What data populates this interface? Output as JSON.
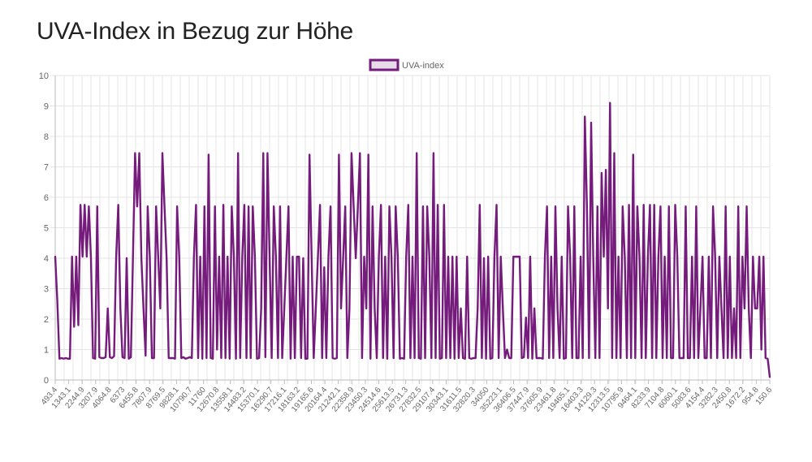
{
  "page_title": "UVA-Index in Bezug zur Höhe",
  "colors": {
    "line": "#741b7c",
    "legend_fill": "#e6dce8",
    "grid": "#e4e4e4",
    "axis": "#bbbbbb"
  },
  "chart_data": {
    "type": "line",
    "title": "UVA-Index in Bezug zur Höhe",
    "xlabel": "",
    "ylabel": "",
    "ylim": [
      0,
      10
    ],
    "yticks": [
      "0",
      "1",
      "2",
      "3",
      "4",
      "5",
      "6",
      "7",
      "8",
      "9",
      "10"
    ],
    "grid": true,
    "legend": {
      "position": "top",
      "entries": [
        "UVA-index"
      ]
    },
    "x_tick_labels": [
      "493.4",
      "1343.1",
      "2244.9",
      "3207.9",
      "4064.8",
      "6373",
      "6455.8",
      "7807.9",
      "8769.5",
      "9828.1",
      "10790.7",
      "11760",
      "12670.8",
      "13558.1",
      "14483.2",
      "15370.1",
      "16290.7",
      "17216.1",
      "18163.2",
      "19165.6",
      "20164.4",
      "21242.1",
      "22358.9",
      "23450.3",
      "24514.6",
      "25613.5",
      "26731.3",
      "27832.5",
      "29107.4",
      "30343.1",
      "31611.5",
      "32820.3",
      "34050",
      "35223.1",
      "36406.5",
      "37447.9",
      "37605.9",
      "23461.8",
      "19465.1",
      "16403.3",
      "14129.3",
      "12313.5",
      "10795.9",
      "9464.1",
      "8233.9",
      "7104.8",
      "6060.1",
      "5083.6",
      "4154.4",
      "3282.3",
      "2450.8",
      "1672.2",
      "954.8",
      "150.6"
    ],
    "series": [
      {
        "name": "UVA-index",
        "values": [
          4.05,
          2.6,
          0.7,
          0.72,
          0.7,
          0.72,
          0.7,
          0.7,
          4.05,
          1.75,
          4.05,
          1.8,
          5.75,
          4.05,
          5.75,
          4.05,
          5.7,
          4.0,
          0.72,
          0.7,
          5.7,
          0.75,
          0.72,
          0.72,
          0.75,
          2.35,
          0.75,
          0.72,
          0.78,
          4.05,
          5.75,
          2.35,
          0.75,
          0.72,
          4.0,
          0.7,
          0.75,
          4.05,
          7.45,
          5.7,
          7.45,
          4.0,
          2.35,
          0.8,
          5.7,
          4.05,
          0.72,
          0.72,
          5.7,
          4.05,
          2.35,
          7.45,
          5.7,
          4.0,
          0.72,
          0.72,
          0.72,
          0.7,
          5.7,
          4.05,
          0.72,
          0.75,
          0.7,
          0.72,
          0.75,
          0.72,
          4.05,
          5.75,
          0.72,
          4.05,
          0.7,
          5.7,
          0.72,
          7.4,
          0.72,
          0.7,
          5.7,
          1.0,
          4.05,
          0.72,
          5.75,
          0.72,
          4.05,
          0.7,
          5.7,
          4.05,
          0.7,
          7.45,
          0.72,
          4.05,
          5.75,
          0.72,
          5.7,
          0.72,
          5.7,
          4.05,
          0.7,
          0.72,
          2.35,
          7.45,
          0.75,
          7.45,
          4.05,
          0.72,
          5.7,
          4.05,
          0.72,
          5.7,
          0.72,
          2.35,
          4.05,
          5.7,
          0.7,
          4.05,
          0.72,
          4.05,
          4.05,
          0.72,
          4.0,
          0.7,
          0.7,
          7.4,
          4.05,
          0.72,
          2.35,
          4.05,
          5.75,
          0.72,
          3.7,
          0.72,
          4.05,
          5.7,
          0.72,
          0.7,
          0.72,
          7.4,
          2.35,
          4.0,
          5.7,
          0.72,
          2.35,
          7.45,
          5.7,
          4.0,
          5.7,
          7.45,
          0.72,
          4.05,
          2.35,
          7.4,
          0.7,
          5.7,
          2.35,
          0.72,
          4.05,
          5.75,
          0.72,
          4.05,
          0.7,
          5.7,
          4.05,
          0.72,
          5.7,
          4.05,
          0.7,
          0.72,
          0.7,
          4.05,
          5.75,
          0.72,
          4.05,
          0.72,
          7.45,
          0.72,
          0.7,
          5.7,
          0.72,
          5.7,
          4.05,
          0.72,
          7.45,
          0.72,
          5.75,
          0.7,
          0.72,
          5.75,
          0.72,
          4.05,
          0.72,
          4.05,
          0.7,
          4.05,
          0.72,
          2.35,
          0.72,
          0.7,
          4.05,
          0.72,
          0.7,
          0.72,
          0.72,
          2.35,
          5.75,
          0.72,
          4.0,
          0.7,
          4.05,
          0.7,
          0.72,
          4.05,
          5.75,
          0.72,
          4.05,
          2.35,
          0.72,
          1.0,
          0.72,
          0.72,
          4.05,
          4.05,
          4.05,
          4.05,
          0.72,
          0.75,
          2.05,
          0.72,
          4.05,
          0.7,
          2.35,
          0.72,
          0.72,
          0.72,
          0.7,
          4.05,
          5.7,
          0.72,
          4.05,
          0.72,
          5.7,
          2.35,
          0.72,
          4.05,
          0.7,
          0.72,
          5.7,
          4.05,
          0.72,
          5.7,
          0.72,
          0.72,
          4.05,
          0.72,
          8.65,
          5.7,
          0.72,
          8.45,
          4.05,
          0.72,
          5.7,
          0.72,
          6.8,
          4.05,
          6.9,
          2.35,
          9.1,
          0.72,
          7.45,
          0.72,
          4.05,
          0.72,
          5.7,
          4.05,
          0.72,
          5.75,
          0.72,
          7.4,
          0.72,
          5.7,
          4.05,
          0.72,
          5.75,
          0.72,
          4.05,
          5.75,
          0.72,
          5.75,
          0.72,
          4.05,
          5.7,
          0.72,
          4.05,
          0.72,
          5.7,
          0.72,
          0.72,
          5.75,
          4.05,
          0.72,
          0.72,
          0.72,
          5.7,
          0.72,
          0.72,
          4.05,
          0.72,
          5.7,
          0.72,
          2.35,
          4.05,
          0.72,
          0.72,
          4.05,
          0.72,
          5.7,
          4.05,
          0.72,
          4.05,
          2.35,
          0.72,
          5.7,
          0.72,
          4.05,
          0.72,
          2.35,
          0.72,
          5.7,
          0.72,
          4.05,
          2.35,
          5.7,
          2.35,
          0.72,
          4.05,
          2.35,
          2.35,
          4.05,
          1.0,
          4.05,
          0.72,
          0.7,
          0.1
        ]
      }
    ]
  }
}
